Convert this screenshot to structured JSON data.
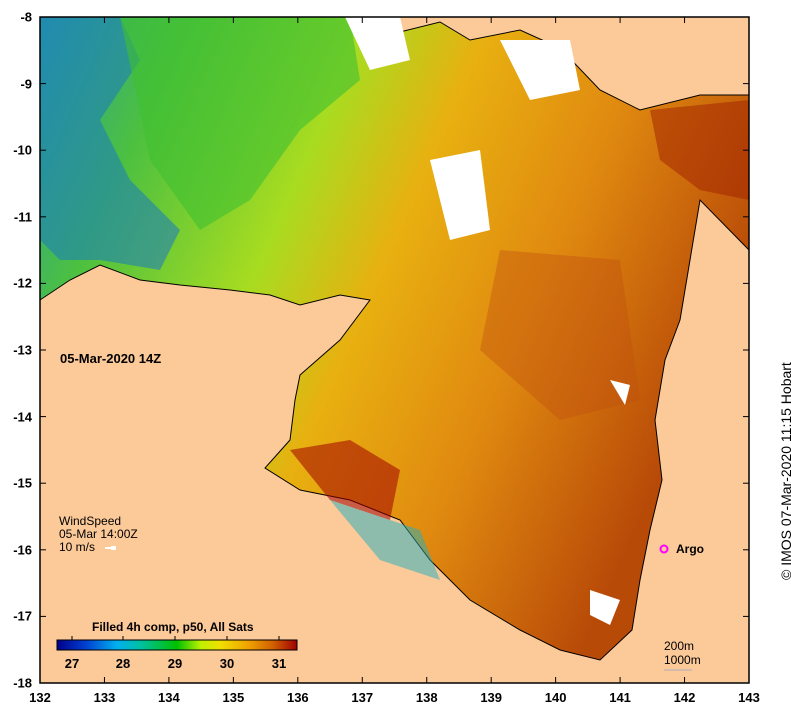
{
  "map": {
    "date_label": "05-Mar-2020 14Z",
    "x_ticks": [
      "132",
      "133",
      "134",
      "135",
      "136",
      "137",
      "138",
      "139",
      "140",
      "141",
      "142",
      "143"
    ],
    "y_ticks": [
      "-8",
      "-9",
      "-10",
      "-11",
      "-12",
      "-13",
      "-14",
      "-15",
      "-16",
      "-17",
      "-18"
    ],
    "land_color": "#fcc998"
  },
  "wind": {
    "title": "WindSpeed",
    "time": "05-Mar 14:00Z",
    "scale": "10 m/s"
  },
  "argo": {
    "label": "Argo",
    "color": "#ff00ff"
  },
  "colorbar": {
    "title": "Filled 4h comp, p50, All Sats",
    "ticks": [
      "27",
      "28",
      "29",
      "30",
      "31"
    ],
    "colors": [
      "#00008b",
      "#0050e0",
      "#00b0f0",
      "#00c0a0",
      "#00c000",
      "#c0f000",
      "#f0e000",
      "#f0a000",
      "#d06000",
      "#a00000"
    ]
  },
  "scale": {
    "depth1": "200m",
    "depth2": "1000m"
  },
  "credit": "© IMOS 07-Mar-2020 11:15 Hobart"
}
